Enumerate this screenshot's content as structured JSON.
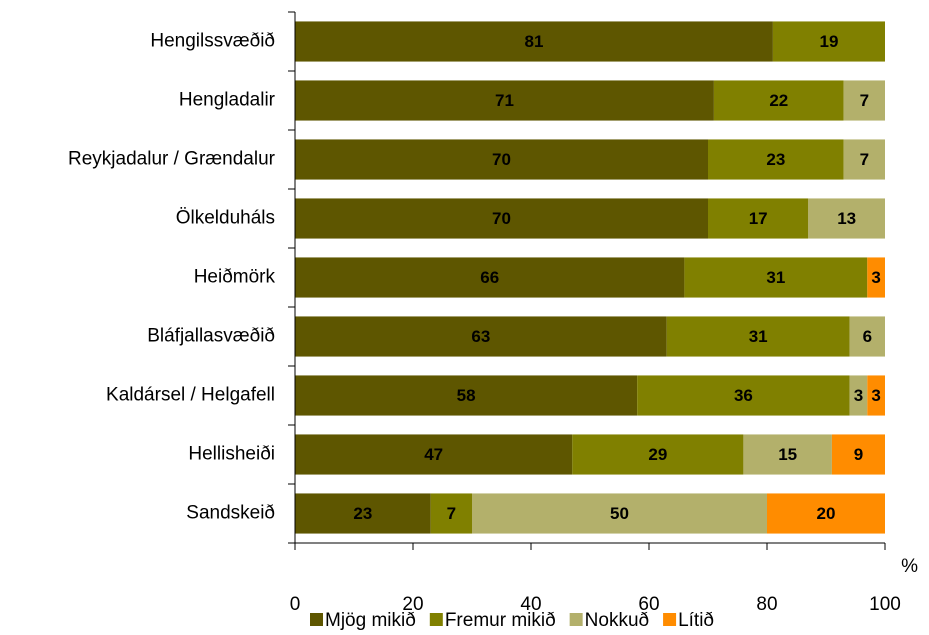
{
  "chart_data": {
    "type": "stacked-barh",
    "categories": [
      "Hengilssvæðið",
      "Hengladalir",
      "Reykjadalur / Grændalur",
      "Ölkelduháls",
      "Heiðmörk",
      "Bláfjallasvæðið",
      "Kaldársel / Helgafell",
      "Hellisheiði",
      "Sandskeið"
    ],
    "series": [
      {
        "name": "Mjög mikið",
        "color": "#5e5600",
        "values": [
          81,
          71,
          70,
          70,
          66,
          63,
          58,
          47,
          23
        ]
      },
      {
        "name": "Fremur mikið",
        "color": "#808000",
        "values": [
          19,
          22,
          23,
          17,
          31,
          31,
          36,
          29,
          7
        ]
      },
      {
        "name": "Nokkuð",
        "color": "#b3b06b",
        "values": [
          null,
          7,
          7,
          13,
          null,
          6,
          3,
          15,
          50
        ]
      },
      {
        "name": "Lítið",
        "color": "#ff8c00",
        "values": [
          null,
          null,
          null,
          null,
          3,
          null,
          3,
          9,
          20
        ]
      }
    ],
    "x_label": "%",
    "xlim": [
      0,
      100
    ],
    "xticks": [
      0,
      20,
      40,
      60,
      80,
      100
    ],
    "legend": "bottom"
  }
}
